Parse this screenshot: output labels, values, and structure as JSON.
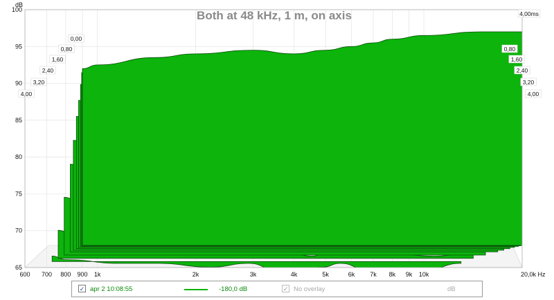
{
  "chart_data": {
    "type": "area",
    "title": "Both at 48 kHz, 1 m, on axis",
    "y_unit": "dB",
    "ylim": [
      65,
      100
    ],
    "y_ticks": [
      65,
      70,
      75,
      80,
      85,
      90,
      95,
      100
    ],
    "x_unit": "Hz",
    "xlim": [
      600,
      20000
    ],
    "x_scale": "log",
    "x_ticks": [
      {
        "v": 600,
        "label": "600"
      },
      {
        "v": 700,
        "label": "700"
      },
      {
        "v": 800,
        "label": "800"
      },
      {
        "v": 900,
        "label": "900"
      },
      {
        "v": 1000,
        "label": "1k"
      },
      {
        "v": 2000,
        "label": "2k"
      },
      {
        "v": 3000,
        "label": "3k"
      },
      {
        "v": 4000,
        "label": "4k"
      },
      {
        "v": 5000,
        "label": "5k"
      },
      {
        "v": 6000,
        "label": "6k"
      },
      {
        "v": 7000,
        "label": "7k"
      },
      {
        "v": 8000,
        "label": "8k"
      },
      {
        "v": 9000,
        "label": "9k"
      },
      {
        "v": 10000,
        "label": "10k"
      },
      {
        "v": 20000,
        "label": "20,0k Hz"
      }
    ],
    "time_unit": "ms",
    "time_ticks_left": [
      "0,00",
      "0,80",
      "1,60",
      "2,40",
      "3,20",
      "4,00"
    ],
    "time_ticks_right": [
      "4,00ms",
      "0,80",
      "1,60",
      "2,40",
      "3,20",
      "4,00"
    ],
    "series_color": "#0cb40c",
    "slices": [
      {
        "t": 0.0,
        "x": [
          900,
          1000,
          1500,
          2000,
          3000,
          4000,
          5000,
          6000,
          7000,
          8000,
          10000,
          15000,
          20000
        ],
        "y": [
          92,
          92.5,
          93.5,
          94,
          94.5,
          94,
          94.5,
          95,
          95.5,
          96,
          96.5,
          97,
          97
        ]
      },
      {
        "t": 0.1,
        "x": [
          900,
          1000,
          1500,
          2000,
          3000,
          4000,
          5000,
          6000,
          7000,
          8000,
          10000,
          15000,
          20000
        ],
        "y": [
          91.5,
          92,
          93,
          93.5,
          93.5,
          93,
          92,
          93,
          94,
          95,
          95,
          95.5,
          96
        ]
      },
      {
        "t": 0.25,
        "x": [
          900,
          1000,
          1500,
          2000,
          3000,
          4000,
          5000,
          6000,
          7000,
          8000,
          10000,
          15000,
          20000
        ],
        "y": [
          90,
          90.5,
          91,
          90,
          88,
          89,
          88.5,
          89,
          90,
          90.5,
          91,
          91,
          90
        ]
      },
      {
        "t": 0.5,
        "x": [
          900,
          1000,
          1500,
          2000,
          3000,
          4000,
          5000,
          6000,
          7000,
          8000,
          10000,
          15000,
          20000
        ],
        "y": [
          88,
          88,
          87.5,
          86,
          83,
          84,
          84.5,
          85,
          85.5,
          86,
          86,
          85.5,
          84
        ]
      },
      {
        "t": 0.8,
        "x": [
          900,
          1000,
          1500,
          2000,
          3000,
          4000,
          5000,
          6000,
          7000,
          8000,
          10000,
          15000,
          20000
        ],
        "y": [
          86,
          85.5,
          84.5,
          82,
          79,
          80.5,
          80,
          81,
          79,
          81.5,
          80,
          81,
          78
        ]
      },
      {
        "t": 1.2,
        "x": [
          900,
          1000,
          1500,
          2000,
          3000,
          4000,
          5000,
          6000,
          7000,
          8000,
          10000,
          15000,
          20000
        ],
        "y": [
          83,
          82.5,
          81,
          79,
          76.5,
          79,
          77,
          76.5,
          77.5,
          77.5,
          76,
          77,
          74
        ]
      },
      {
        "t": 1.6,
        "x": [
          900,
          1000,
          1500,
          2000,
          3000,
          4000,
          5000,
          6000,
          7000,
          8000,
          10000,
          15000,
          20000
        ],
        "y": [
          80,
          79.5,
          78,
          75,
          74,
          77.5,
          73.5,
          74,
          76,
          76.5,
          75,
          74,
          73
        ]
      },
      {
        "t": 2.4,
        "x": [
          900,
          1000,
          1500,
          2000,
          3000,
          4000,
          5000,
          6000,
          7000,
          8000,
          10000,
          15000,
          20000
        ],
        "y": [
          76,
          75.5,
          74,
          73,
          72,
          75,
          71.5,
          71.5,
          73,
          74,
          72,
          71,
          72
        ]
      },
      {
        "t": 3.2,
        "x": [
          900,
          1000,
          1500,
          2000,
          3000,
          4000,
          5000,
          6000,
          7000,
          8000,
          10000,
          15000,
          20000
        ],
        "y": [
          72,
          71.5,
          70.5,
          71,
          70,
          72,
          69,
          68.5,
          69.5,
          70,
          69,
          68.5,
          69
        ]
      },
      {
        "t": 4.0,
        "x": [
          900,
          1000,
          1500,
          2000,
          3000,
          4000,
          5000,
          6000,
          7000,
          8000,
          10000,
          15000,
          20000
        ],
        "y": [
          69,
          68.5,
          68,
          68,
          67.5,
          68,
          67,
          67,
          67.5,
          68,
          67,
          67,
          68
        ]
      }
    ]
  },
  "legend": {
    "entry1_label": "apr 2 10:08:55",
    "entry1_value": "-180,0 dB",
    "entry1_checked": "✓",
    "entry2_label": "No overlay",
    "entry2_checked": "✓",
    "entry2_value": "dB",
    "line_color": "#0cb40c"
  }
}
